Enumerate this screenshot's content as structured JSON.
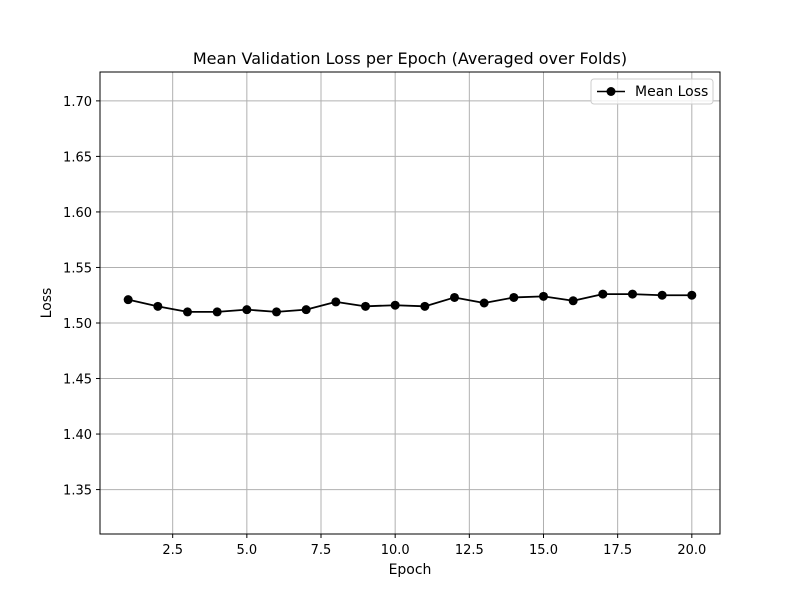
{
  "chart_data": {
    "type": "line",
    "title": "Mean Validation Loss per Epoch (Averaged over Folds)",
    "xlabel": "Epoch",
    "ylabel": "Loss",
    "xlim": [
      0.05,
      20.95
    ],
    "ylim": [
      1.31,
      1.726
    ],
    "xticks": [
      2.5,
      5.0,
      7.5,
      10.0,
      12.5,
      15.0,
      17.5,
      20.0
    ],
    "xtick_labels": [
      "2.5",
      "5.0",
      "7.5",
      "10.0",
      "12.5",
      "15.0",
      "17.5",
      "20.0"
    ],
    "yticks": [
      1.35,
      1.4,
      1.45,
      1.5,
      1.55,
      1.6,
      1.65,
      1.7
    ],
    "ytick_labels": [
      "1.35",
      "1.40",
      "1.45",
      "1.50",
      "1.55",
      "1.60",
      "1.65",
      "1.70"
    ],
    "grid": true,
    "legend_position": "top-right",
    "series": [
      {
        "name": "Mean Loss",
        "color": "#000000",
        "marker": "circle",
        "x": [
          1,
          2,
          3,
          4,
          5,
          6,
          7,
          8,
          9,
          10,
          11,
          12,
          13,
          14,
          15,
          16,
          17,
          18,
          19,
          20
        ],
        "values": [
          1.521,
          1.515,
          1.51,
          1.51,
          1.512,
          1.51,
          1.512,
          1.519,
          1.515,
          1.516,
          1.515,
          1.523,
          1.518,
          1.523,
          1.524,
          1.52,
          1.526,
          1.526,
          1.525,
          1.525
        ]
      }
    ]
  }
}
